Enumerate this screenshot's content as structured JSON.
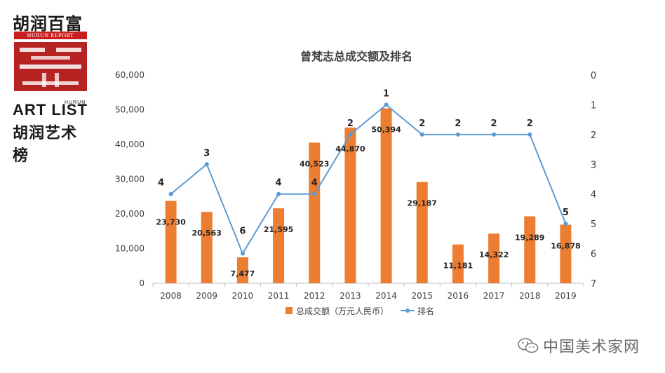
{
  "logo": {
    "top_text": "胡润百富",
    "report_text": "HURUN REPORT",
    "art_text": "ART LIST",
    "hurun_small": "HURUN",
    "bottom_text": "胡润艺术榜"
  },
  "watermark": {
    "text": "中国美术家网",
    "icon": "wechat-icon"
  },
  "colors": {
    "bar": "#ed7d31",
    "line": "#5b9bd5",
    "text": "#404040",
    "grid": "#d9d9d9"
  },
  "chart_data": {
    "type": "bar",
    "title": "曾梵志总成交额及排名",
    "categories": [
      "2008",
      "2009",
      "2010",
      "2011",
      "2012",
      "2013",
      "2014",
      "2015",
      "2016",
      "2017",
      "2018",
      "2019"
    ],
    "series": [
      {
        "name": "总成交额（万元人民币）",
        "type": "bar",
        "axis": "left",
        "values": [
          23730,
          20563,
          7477,
          21595,
          40523,
          44870,
          50394,
          29187,
          11181,
          14322,
          19289,
          16878
        ],
        "labels": [
          "23,730",
          "20,563",
          "7,477",
          "21,595",
          "40,523",
          "44,870",
          "50,394",
          "29,187",
          "11,181",
          "14,322",
          "19,289",
          "16,878"
        ]
      },
      {
        "name": "排名",
        "type": "line",
        "axis": "right",
        "values": [
          4,
          3,
          6,
          4,
          4,
          2,
          1,
          2,
          2,
          2,
          2,
          5
        ],
        "labels": [
          "4",
          "3",
          "6",
          "4",
          "4",
          "2",
          "1",
          "2",
          "2",
          "2",
          "2",
          "5"
        ]
      }
    ],
    "y_left": {
      "ticks": [
        "0",
        "10,000",
        "20,000",
        "30,000",
        "40,000",
        "50,000",
        "60,000"
      ],
      "range": [
        0,
        60000
      ]
    },
    "y_right": {
      "ticks": [
        "0",
        "1",
        "2",
        "3",
        "4",
        "5",
        "6",
        "7"
      ],
      "range": [
        0,
        7
      ],
      "reversed": true
    },
    "grid": false,
    "legend": "bottom"
  }
}
